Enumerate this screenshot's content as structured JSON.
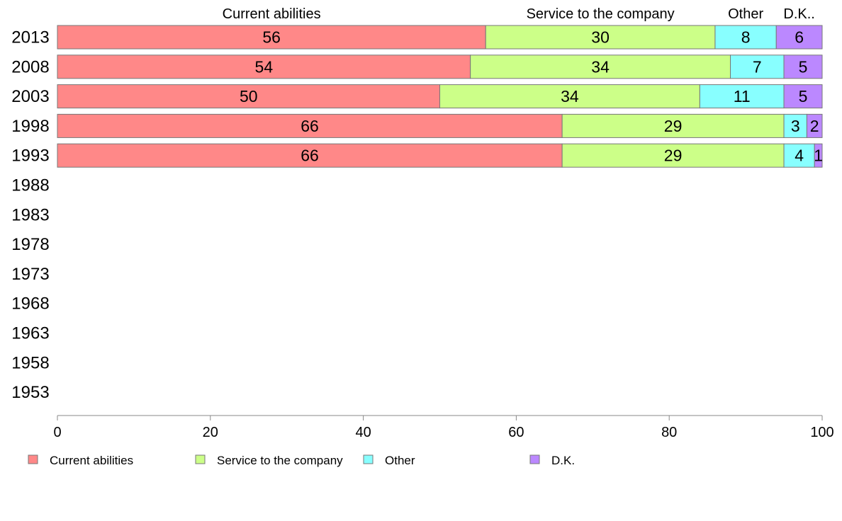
{
  "chart_data": {
    "type": "bar",
    "orientation": "horizontal",
    "stacked": true,
    "categories": [
      "2013",
      "2008",
      "2003",
      "1998",
      "1993",
      "1988",
      "1983",
      "1978",
      "1973",
      "1968",
      "1963",
      "1958",
      "1953"
    ],
    "series": [
      {
        "name": "Current abilities",
        "color": "#ff8888",
        "values": [
          56,
          54,
          50,
          66,
          66,
          null,
          null,
          null,
          null,
          null,
          null,
          null,
          null
        ]
      },
      {
        "name": "Service to the company",
        "color": "#ccff88",
        "values": [
          30,
          34,
          34,
          29,
          29,
          null,
          null,
          null,
          null,
          null,
          null,
          null,
          null
        ]
      },
      {
        "name": "Other",
        "color": "#88ffff",
        "values": [
          8,
          7,
          11,
          3,
          4,
          null,
          null,
          null,
          null,
          null,
          null,
          null,
          null
        ]
      },
      {
        "name": "D.K.",
        "color": "#bb88ff",
        "values": [
          6,
          5,
          5,
          2,
          1,
          null,
          null,
          null,
          null,
          null,
          null,
          null,
          null
        ]
      }
    ],
    "top_labels": [
      "Current abilities",
      "Service to the company",
      "Other",
      "D.K.."
    ],
    "xlim": [
      0,
      100
    ],
    "xticks": [
      0,
      20,
      40,
      60,
      80,
      100
    ],
    "grid": false,
    "legend_position": "bottom"
  }
}
